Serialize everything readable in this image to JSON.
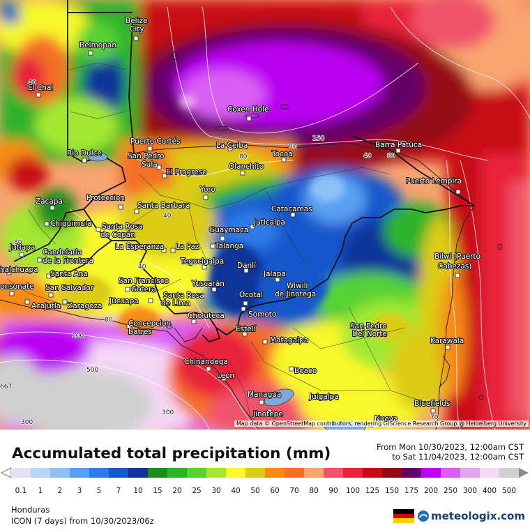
{
  "title": "Accumulated total precipitation (mm)",
  "period": {
    "from": "From Mon 10/30/2023, 12:00am CST",
    "to": "to Sat 11/04/2023, 12:00am CST"
  },
  "region": "Honduras",
  "model": "ICON (7 days) from 10/30/2023/06z",
  "attribution": "Map data © OpenStreetMap contributors, rendering GIScience Research Group @ Heidelberg University",
  "brand": "meteologix.com",
  "legend": {
    "values": [
      "0.1",
      "1",
      "2",
      "3",
      "5",
      "7",
      "10",
      "15",
      "20",
      "25",
      "30",
      "40",
      "50",
      "60",
      "70",
      "80",
      "90",
      "100",
      "125",
      "150",
      "175",
      "200",
      "250",
      "300",
      "400",
      "500"
    ],
    "colors": [
      "#e2e2f6",
      "#b6d6fc",
      "#8cc0f8",
      "#5aa0f2",
      "#2e7ae6",
      "#1856cc",
      "#10349a",
      "#1a8c1c",
      "#2eb22a",
      "#56d236",
      "#a2e832",
      "#f8f82a",
      "#dccc18",
      "#f88a14",
      "#f47028",
      "#f8a470",
      "#f0526a",
      "#e8243a",
      "#c80a14",
      "#960814",
      "#640068",
      "#ba04f2",
      "#da5ef6",
      "#e6a2f4",
      "#f4d8f6",
      "#d0d0d0"
    ],
    "arrow_left_color": "#ffffff",
    "arrow_right_color": "#8a8a8a"
  },
  "cities": [
    {
      "name": "Belize City"
    },
    {
      "name": "Belmopan"
    },
    {
      "name": "El Chal"
    },
    {
      "name": "Coxen Hole"
    },
    {
      "name": "Puerto Cortés"
    },
    {
      "name": "La Ceiba"
    },
    {
      "name": "Barra Patuca"
    },
    {
      "name": "Rio Dulce"
    },
    {
      "name": "San Pedro Sula"
    },
    {
      "name": "El Progreso"
    },
    {
      "name": "Olanchito"
    },
    {
      "name": "Tocoa"
    },
    {
      "name": "Puerto Lempira"
    },
    {
      "name": "Yoro"
    },
    {
      "name": "Zacapa"
    },
    {
      "name": "Proteccion"
    },
    {
      "name": "Santa Barbara"
    },
    {
      "name": "Catacamas"
    },
    {
      "name": "Chiquimula"
    },
    {
      "name": "Santa Rosa de Copán"
    },
    {
      "name": "Juticalpa"
    },
    {
      "name": "Guaymaca"
    },
    {
      "name": "Jutiapa"
    },
    {
      "name": "Candelaria de la Frontera"
    },
    {
      "name": "La Esperanza"
    },
    {
      "name": "La Paz"
    },
    {
      "name": "Talanga"
    },
    {
      "name": "Bilwi (Puerto Cabezas)"
    },
    {
      "name": "Chalchuapa"
    },
    {
      "name": "Santa Ana"
    },
    {
      "name": "Tegucigalpa"
    },
    {
      "name": "Danlí"
    },
    {
      "name": "Sonsonate"
    },
    {
      "name": "San Salvador"
    },
    {
      "name": "San Francisco Gotera"
    },
    {
      "name": "Yuscarán"
    },
    {
      "name": "Jalapa"
    },
    {
      "name": "Wiwili de Jinotega"
    },
    {
      "name": "Acajutla"
    },
    {
      "name": "Zaragoza"
    },
    {
      "name": "Jucuapa"
    },
    {
      "name": "Santa Rosa de Lima"
    },
    {
      "name": "Ocotal"
    },
    {
      "name": "Somoto"
    },
    {
      "name": "Choluteca"
    },
    {
      "name": "San Pedro Del Norte"
    },
    {
      "name": "Concepcion Batres"
    },
    {
      "name": "Estelí"
    },
    {
      "name": "Matagalpa"
    },
    {
      "name": "Karawala"
    },
    {
      "name": "Chinandega"
    },
    {
      "name": "Boaco"
    },
    {
      "name": "León"
    },
    {
      "name": "Managua"
    },
    {
      "name": "Juigalpa"
    },
    {
      "name": "Bluefields"
    },
    {
      "name": "Jinotepe"
    },
    {
      "name": "Nueva"
    }
  ],
  "contour_labels": [
    "40",
    "80",
    "150",
    "80",
    "40",
    "80",
    "40",
    "80",
    "40",
    "80",
    "100",
    "500",
    "300",
    "300",
    "70",
    "667"
  ]
}
